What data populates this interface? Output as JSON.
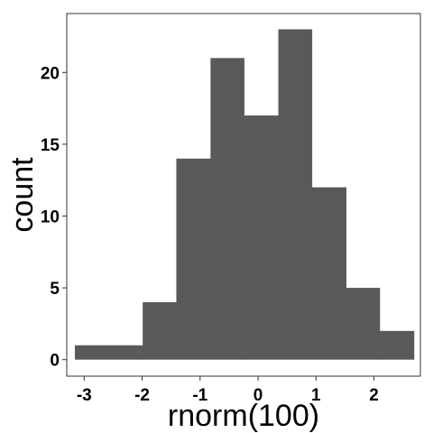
{
  "chart_data": {
    "type": "bar",
    "subtype": "histogram",
    "xlabel": "rnorm(100)",
    "ylabel": "count",
    "xlim": [
      -3.3,
      2.8
    ],
    "ylim": [
      -1.15,
      24.1
    ],
    "x_ticks": [
      -3,
      -2,
      -1,
      0,
      1,
      2
    ],
    "y_ticks": [
      0,
      5,
      10,
      15,
      20
    ],
    "bins": [
      {
        "x_start": -3.16,
        "x_end": -2.58,
        "count": 1
      },
      {
        "x_start": -2.58,
        "x_end": -1.99,
        "count": 1
      },
      {
        "x_start": -1.99,
        "x_end": -1.41,
        "count": 4
      },
      {
        "x_start": -1.41,
        "x_end": -0.82,
        "count": 14
      },
      {
        "x_start": -0.82,
        "x_end": -0.24,
        "count": 21
      },
      {
        "x_start": -0.24,
        "x_end": 0.35,
        "count": 17
      },
      {
        "x_start": 0.35,
        "x_end": 0.93,
        "count": 23
      },
      {
        "x_start": 0.93,
        "x_end": 1.52,
        "count": 12
      },
      {
        "x_start": 1.52,
        "x_end": 2.1,
        "count": 5
      },
      {
        "x_start": 2.1,
        "x_end": 2.69,
        "count": 2
      }
    ],
    "grid": false,
    "bar_color": "#595959",
    "background": "#ffffff"
  }
}
